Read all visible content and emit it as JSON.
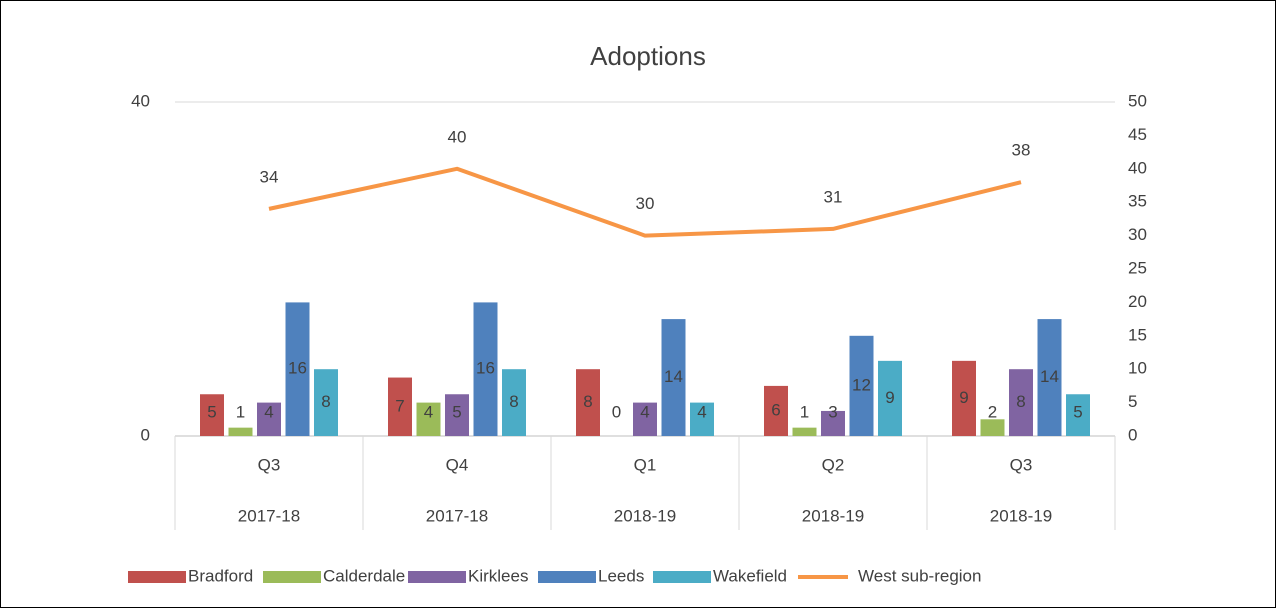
{
  "chart_data": {
    "type": "bar",
    "title": "Adoptions",
    "categories": [
      "Q3",
      "Q4",
      "Q1",
      "Q2",
      "Q3"
    ],
    "category_groups": [
      "2017-18",
      "2017-18",
      "2018-19",
      "2018-19",
      "2018-19"
    ],
    "series": [
      {
        "name": "Bradford",
        "color": "#c0504d",
        "values": [
          5,
          7,
          8,
          6,
          9
        ]
      },
      {
        "name": "Calderdale",
        "color": "#9bbb59",
        "values": [
          1,
          4,
          0,
          1,
          2
        ]
      },
      {
        "name": "Kirklees",
        "color": "#8064a2",
        "values": [
          4,
          5,
          4,
          3,
          8
        ]
      },
      {
        "name": "Leeds",
        "color": "#4f81bd",
        "values": [
          16,
          16,
          14,
          12,
          14
        ]
      },
      {
        "name": "Wakefield",
        "color": "#4bacc6",
        "values": [
          8,
          8,
          4,
          9,
          5
        ]
      },
      {
        "name": "West sub-region",
        "color": "#f79646",
        "type": "line",
        "axis": "y2",
        "values": [
          34,
          40,
          30,
          31,
          38
        ]
      }
    ],
    "ylim": [
      0,
      40
    ],
    "yticks": [
      0,
      40
    ],
    "y2lim": [
      0,
      50
    ],
    "y2ticks": [
      0,
      5,
      10,
      15,
      20,
      25,
      30,
      35,
      40,
      45,
      50
    ],
    "grid": true,
    "legend": "bottom"
  }
}
